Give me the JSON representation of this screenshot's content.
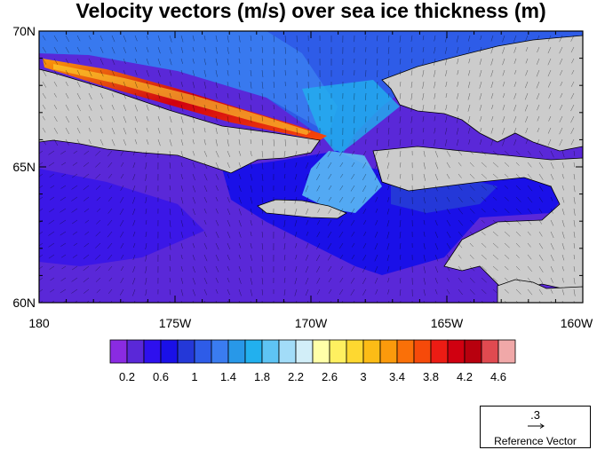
{
  "title": "Velocity vectors (m/s) over sea ice thickness (m)",
  "map": {
    "lat_labels": [
      "70N",
      "65N",
      "60N"
    ],
    "lon_labels": [
      "180",
      "175W",
      "170W",
      "165W",
      "160W"
    ],
    "land_color": "#cccccc",
    "coast_color": "#000000"
  },
  "colorbar": {
    "colors": [
      "#8a2be2",
      "#5a28d8",
      "#2e10ee",
      "#1a10e8",
      "#2438d8",
      "#2e5ce8",
      "#3a7cf0",
      "#2898e8",
      "#22b0ee",
      "#5ec4f4",
      "#a2dcf8",
      "#d2eef8",
      "#ffffa8",
      "#fff060",
      "#fed830",
      "#fcbc16",
      "#fb9a0c",
      "#fa7008",
      "#f64a0a",
      "#ec1c14",
      "#d00010",
      "#b8000e",
      "#e04a50",
      "#f0a8a8"
    ],
    "labels": [
      "0.2",
      "0.6",
      "1",
      "1.4",
      "1.8",
      "2.2",
      "2.6",
      "3",
      "3.4",
      "3.8",
      "4.2",
      "4.6"
    ]
  },
  "reference_vector": {
    "magnitude": ".3",
    "caption": "Reference Vector"
  }
}
